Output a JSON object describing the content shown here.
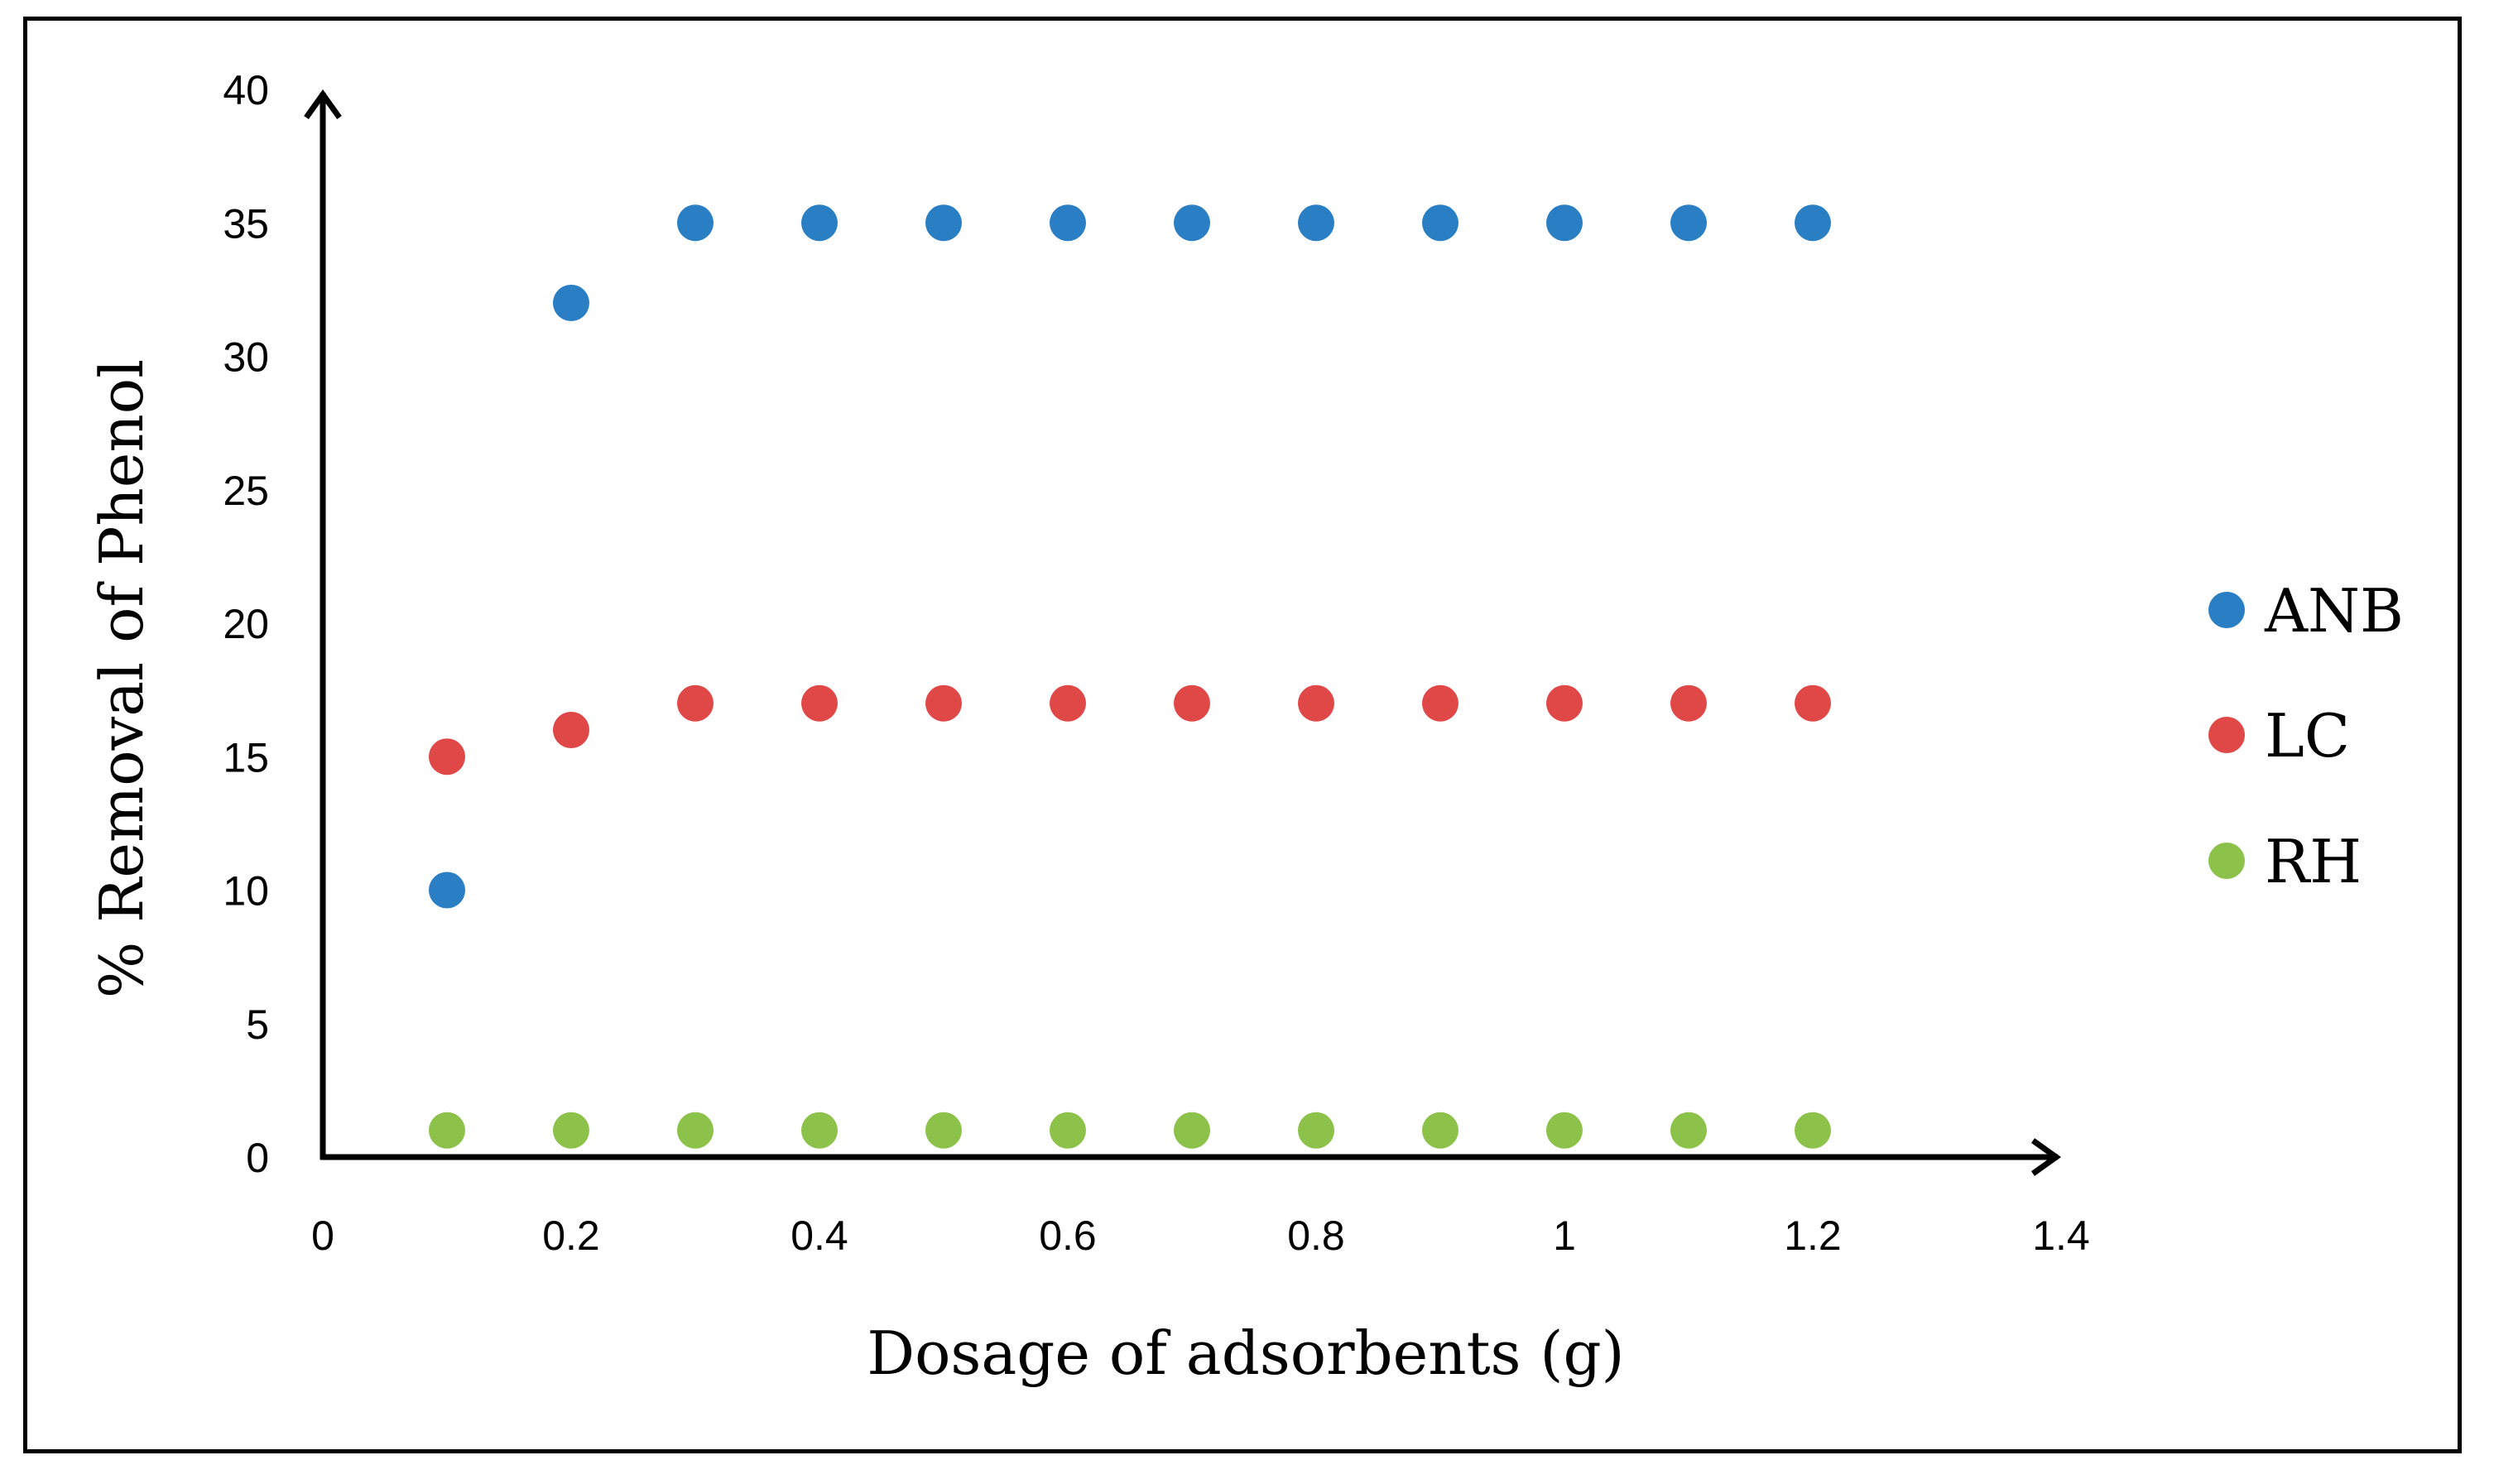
{
  "chart_data": {
    "type": "scatter",
    "title": "",
    "xlabel": "Dosage of adsorbents (g)",
    "ylabel": "% Removal of Phenol",
    "xlim": [
      0,
      1.4
    ],
    "ylim": [
      0,
      40
    ],
    "x_ticks": [
      "0",
      "0.2",
      "0.4",
      "0.6",
      "0.8",
      "1",
      "1.2",
      "1.4"
    ],
    "y_ticks": [
      "0",
      "5",
      "10",
      "15",
      "20",
      "25",
      "30",
      "35",
      "40"
    ],
    "grid": false,
    "legend_position": "right",
    "x": [
      0.1,
      0.2,
      0.3,
      0.4,
      0.5,
      0.6,
      0.7,
      0.8,
      0.9,
      1.0,
      1.1,
      1.2
    ],
    "series": [
      {
        "name": "ANB",
        "color": "#2a7fc4",
        "values": [
          10,
          32,
          35,
          35,
          35,
          35,
          35,
          35,
          35,
          35,
          35,
          35
        ]
      },
      {
        "name": "LC",
        "color": "#e04848",
        "values": [
          15,
          16,
          17,
          17,
          17,
          17,
          17,
          17,
          17,
          17,
          17,
          17
        ]
      },
      {
        "name": "RH",
        "color": "#8dc24a",
        "values": [
          1,
          1,
          1,
          1,
          1,
          1,
          1,
          1,
          1,
          1,
          1,
          1
        ]
      }
    ]
  }
}
